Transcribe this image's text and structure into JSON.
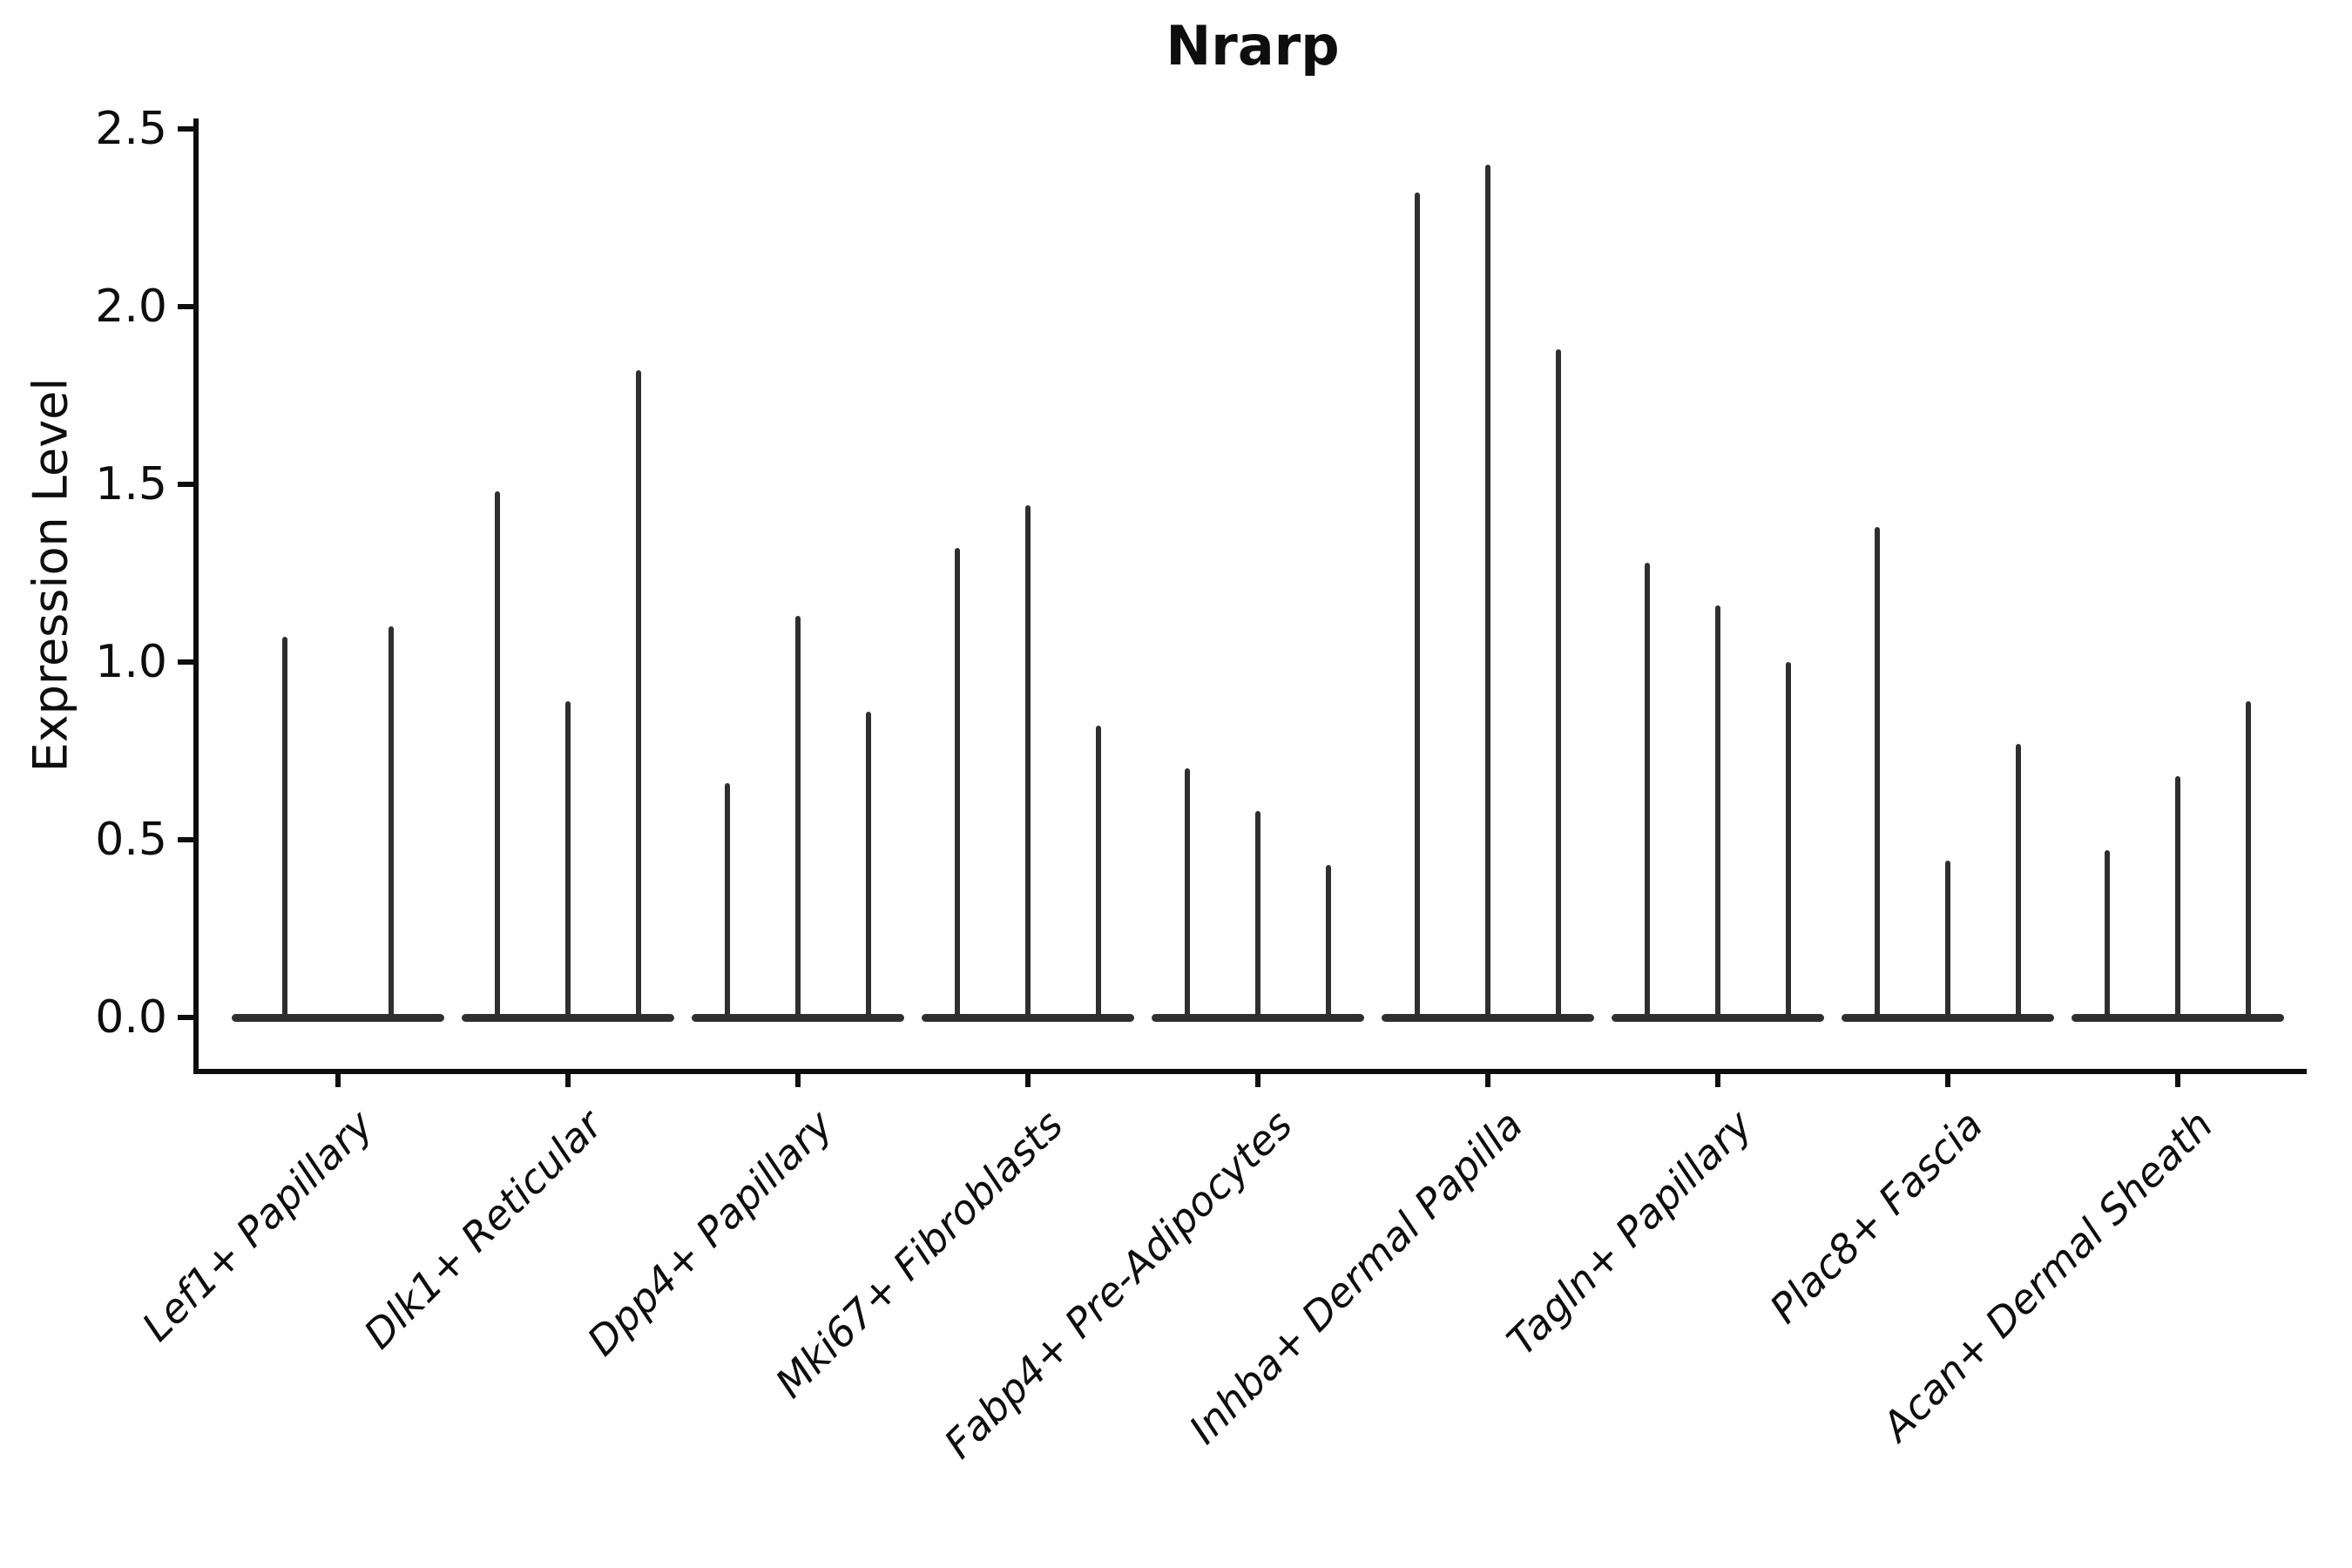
{
  "figure": {
    "title": "Nrarp"
  },
  "y_axis": {
    "label": "Expression Level",
    "tick_labels": [
      "0.0",
      "0.5",
      "1.0",
      "1.5",
      "2.0",
      "2.5"
    ]
  },
  "chart_data": {
    "type": "violin",
    "title": "Nrarp",
    "xlabel": "",
    "ylabel": "Expression Level",
    "ylim": [
      0,
      2.5
    ],
    "yticks": [
      0.0,
      0.5,
      1.0,
      1.5,
      2.0,
      2.5
    ],
    "grid": false,
    "legend_position": "none",
    "description": "Narrow spike-shaped violins (expression mostly 0 with thin tails); each category holds 2-3 violins whose values are the maximum expression reached by each spike",
    "categories": [
      "Lef1+ Papillary",
      "Dlk1+ Reticular",
      "Dpp4+ Papillary",
      "Mki67+ Fibroblasts",
      "Fabp4+ Pre-Adipocytes",
      "Inhba+ Dermal Papilla",
      "Tagln+ Papillary",
      "Plac8+ Fascia",
      "Acan+ Dermal Sheath"
    ],
    "groups": [
      {
        "category": "Lef1+ Papillary",
        "violin_max_values": [
          1.07,
          1.1
        ]
      },
      {
        "category": "Dlk1+ Reticular",
        "violin_max_values": [
          1.48,
          0.89,
          1.82
        ]
      },
      {
        "category": "Dpp4+ Papillary",
        "violin_max_values": [
          0.66,
          1.13,
          0.86
        ]
      },
      {
        "category": "Mki67+ Fibroblasts",
        "violin_max_values": [
          1.32,
          1.44,
          0.82
        ]
      },
      {
        "category": "Fabp4+ Pre-Adipocytes",
        "violin_max_values": [
          0.7,
          0.58,
          0.43
        ]
      },
      {
        "category": "Inhba+ Dermal Papilla",
        "violin_max_values": [
          2.32,
          2.4,
          1.88
        ]
      },
      {
        "category": "Tagln+ Papillary",
        "violin_max_values": [
          1.28,
          1.16,
          1.0
        ]
      },
      {
        "category": "Plac8+ Fascia",
        "violin_max_values": [
          1.38,
          0.44,
          0.77
        ]
      },
      {
        "category": "Acan+ Dermal Sheath",
        "violin_max_values": [
          0.47,
          0.68,
          0.89
        ]
      }
    ],
    "colors": {
      "ink": "#0e0e0e",
      "violin": "#2f2f2f",
      "background": "#ffffff"
    }
  }
}
